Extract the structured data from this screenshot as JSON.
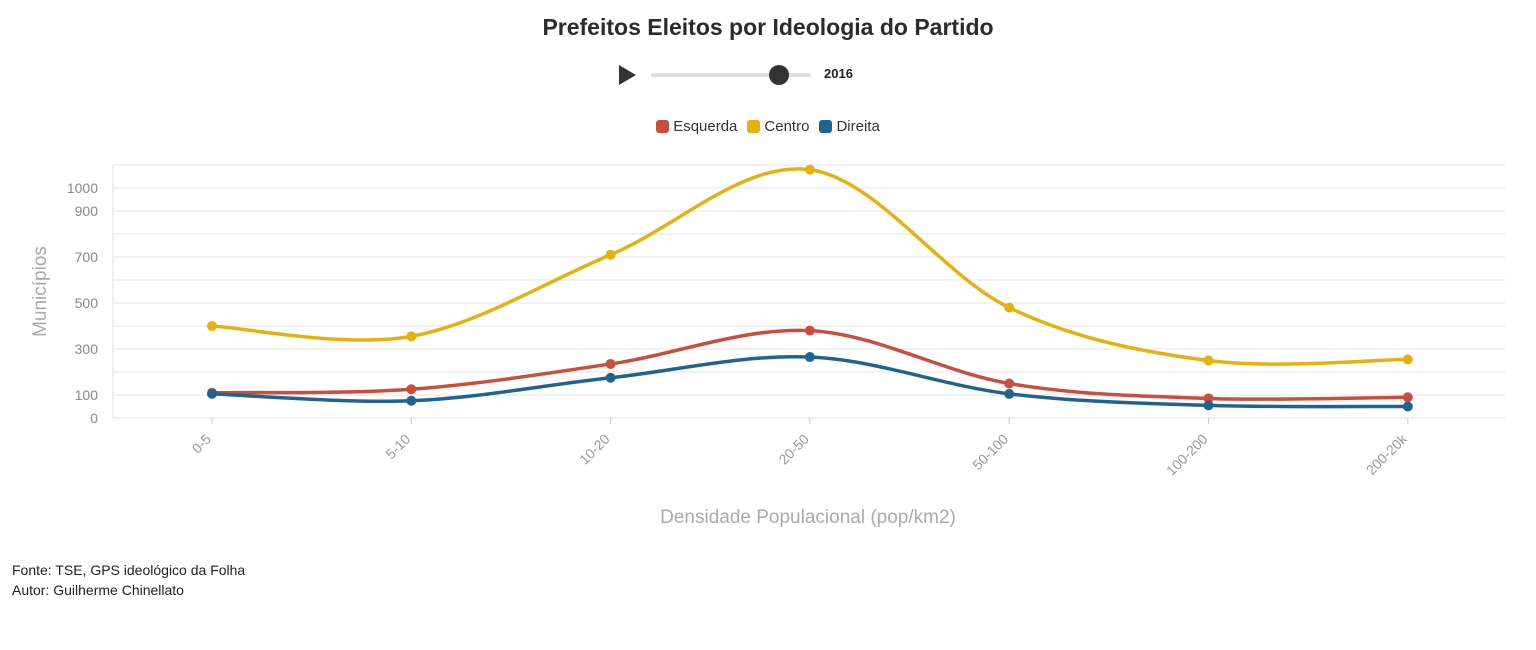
{
  "title": "Prefeitos Eleitos por Ideologia do Partido",
  "player": {
    "year": "2016",
    "progress": 0.8
  },
  "legend": [
    {
      "label": "Esquerda",
      "color": "#c94f3c"
    },
    {
      "label": "Centro",
      "color": "#e8b00f"
    },
    {
      "label": "Direita",
      "color": "#1f6491"
    }
  ],
  "footer": {
    "source": "Fonte: TSE, GPS ideológico da Folha",
    "author": "Autor: Guilherme Chinellato"
  },
  "chart_data": {
    "type": "line",
    "title": "Prefeitos Eleitos por Ideologia do Partido",
    "xlabel": "Densidade Populacional (pop/km2)",
    "ylabel": "Municípios",
    "categories": [
      "0-5",
      "5-10",
      "10-20",
      "20-50",
      "50-100",
      "100-200",
      "200-20k"
    ],
    "yticks": [
      0,
      100,
      300,
      500,
      700,
      900,
      1000
    ],
    "ylim": [
      0,
      1100
    ],
    "grid": true,
    "legend_position": "top-center",
    "series": [
      {
        "name": "Esquerda",
        "color": "#c94f3c",
        "values": [
          110,
          125,
          235,
          380,
          150,
          85,
          90
        ]
      },
      {
        "name": "Centro",
        "color": "#e8b00f",
        "values": [
          400,
          355,
          710,
          1080,
          480,
          250,
          255
        ]
      },
      {
        "name": "Direita",
        "color": "#1f6491",
        "values": [
          105,
          75,
          175,
          265,
          105,
          55,
          50
        ]
      }
    ]
  }
}
